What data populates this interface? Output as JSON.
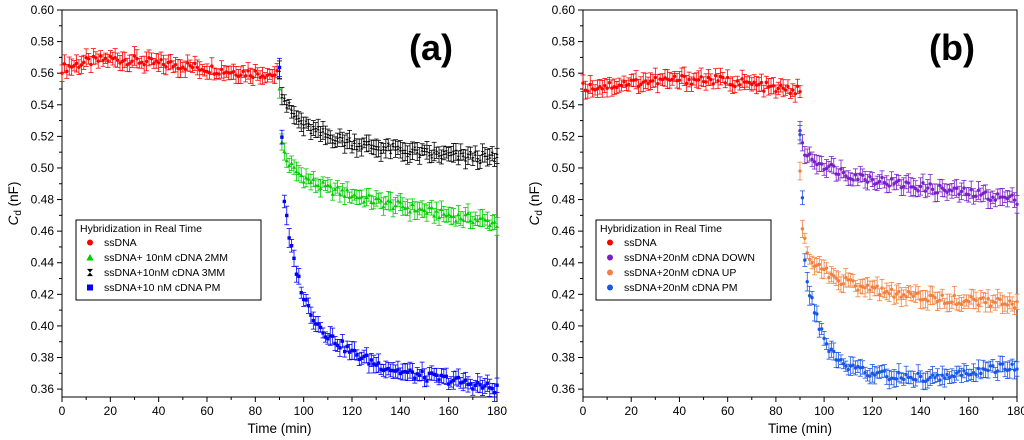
{
  "chart_data": [
    {
      "type": "scatter",
      "panel_label": "(a)",
      "xlabel": "Time (min)",
      "ylabel_main": "C",
      "ylabel_sub": "d",
      "ylabel_unit": " (nF)",
      "xlim": [
        0,
        180
      ],
      "ylim": [
        0.355,
        0.6
      ],
      "xticks": [
        0,
        20,
        40,
        60,
        80,
        100,
        120,
        140,
        160,
        180
      ],
      "yticks": [
        "0.36",
        "0.38",
        "0.40",
        "0.42",
        "0.44",
        "0.46",
        "0.48",
        "0.50",
        "0.52",
        "0.54",
        "0.56",
        "0.58",
        "0.60"
      ],
      "grid": false,
      "error_bars": true,
      "legend_title": "Hybridization in Real Time",
      "legend_position": "lower-left",
      "series": [
        {
          "name": "ssDNA",
          "color": "#ff0000",
          "marker": "circle",
          "x_range": [
            0,
            89
          ],
          "x": [
            0,
            10,
            20,
            30,
            40,
            50,
            60,
            70,
            80,
            89
          ],
          "y": [
            0.563,
            0.567,
            0.569,
            0.568,
            0.566,
            0.565,
            0.563,
            0.561,
            0.56,
            0.559
          ]
        },
        {
          "name": "ssDNA+ 10nM cDNA 2MM",
          "color": "#00cc00",
          "marker": "triangle",
          "x_range": [
            90,
            180
          ],
          "x": [
            90,
            91,
            93,
            96,
            100,
            105,
            110,
            120,
            130,
            140,
            150,
            160,
            170,
            180
          ],
          "y": [
            0.552,
            0.515,
            0.505,
            0.499,
            0.494,
            0.49,
            0.487,
            0.483,
            0.479,
            0.476,
            0.473,
            0.47,
            0.468,
            0.465
          ]
        },
        {
          "name": "ssDNA+10nM cDNA 3MM",
          "color": "#000000",
          "marker": "hourglass",
          "x_range": [
            90,
            180
          ],
          "x": [
            90,
            91,
            93,
            96,
            100,
            105,
            110,
            120,
            130,
            140,
            150,
            160,
            170,
            180
          ],
          "y": [
            0.565,
            0.548,
            0.54,
            0.533,
            0.527,
            0.523,
            0.52,
            0.516,
            0.513,
            0.511,
            0.509,
            0.508,
            0.507,
            0.506
          ]
        },
        {
          "name": "ssDNA+10 nM cDNA PM",
          "color": "#0000ff",
          "marker": "square",
          "x_range": [
            90,
            180
          ],
          "x": [
            90,
            91,
            92,
            94,
            97,
            100,
            105,
            110,
            120,
            130,
            140,
            150,
            160,
            170,
            180
          ],
          "y": [
            0.565,
            0.52,
            0.48,
            0.455,
            0.435,
            0.418,
            0.403,
            0.394,
            0.383,
            0.376,
            0.371,
            0.368,
            0.366,
            0.363,
            0.36
          ]
        }
      ]
    },
    {
      "type": "scatter",
      "panel_label": "(b)",
      "xlabel": "Time (min)",
      "ylabel_main": "C",
      "ylabel_sub": "d",
      "ylabel_unit": " (nF)",
      "xlim": [
        0,
        180
      ],
      "ylim": [
        0.355,
        0.6
      ],
      "xticks": [
        0,
        20,
        40,
        60,
        80,
        100,
        120,
        140,
        160,
        180
      ],
      "yticks": [
        "0.36",
        "0.38",
        "0.40",
        "0.42",
        "0.44",
        "0.46",
        "0.48",
        "0.50",
        "0.52",
        "0.54",
        "0.56",
        "0.58",
        "0.60"
      ],
      "grid": false,
      "error_bars": true,
      "legend_title": "Hybridization in Real Time",
      "legend_position": "lower-left",
      "series": [
        {
          "name": "ssDNA",
          "color": "#ff0000",
          "marker": "circle",
          "x_range": [
            0,
            90
          ],
          "x": [
            0,
            10,
            20,
            30,
            40,
            50,
            60,
            70,
            80,
            90
          ],
          "y": [
            0.551,
            0.552,
            0.554,
            0.555,
            0.556,
            0.556,
            0.555,
            0.553,
            0.55,
            0.549
          ]
        },
        {
          "name": "ssDNA+20nM cDNA DOWN",
          "color": "#7a1fc8",
          "marker": "circle",
          "x_range": [
            90,
            180
          ],
          "x": [
            90,
            91,
            93,
            96,
            100,
            105,
            110,
            120,
            130,
            140,
            150,
            160,
            170,
            180
          ],
          "y": [
            0.525,
            0.513,
            0.508,
            0.505,
            0.502,
            0.499,
            0.496,
            0.493,
            0.49,
            0.488,
            0.486,
            0.484,
            0.482,
            0.48
          ]
        },
        {
          "name": "ssDNA+20nM cDNA UP",
          "color": "#f28040",
          "marker": "circle",
          "x_range": [
            90,
            180
          ],
          "x": [
            90,
            91,
            93,
            96,
            100,
            105,
            110,
            120,
            130,
            140,
            150,
            160,
            170,
            180
          ],
          "y": [
            0.5,
            0.46,
            0.447,
            0.44,
            0.435,
            0.43,
            0.427,
            0.423,
            0.42,
            0.418,
            0.417,
            0.416,
            0.415,
            0.413
          ]
        },
        {
          "name": "ssDNA+20nM cDNA PM",
          "color": "#1a55e6",
          "marker": "circle",
          "x_range": [
            90,
            180
          ],
          "x": [
            90,
            91,
            92,
            94,
            97,
            100,
            103,
            106,
            110,
            120,
            130,
            140,
            150,
            160,
            170,
            180
          ],
          "y": [
            0.52,
            0.48,
            0.44,
            0.42,
            0.405,
            0.392,
            0.384,
            0.378,
            0.374,
            0.37,
            0.368,
            0.367,
            0.368,
            0.37,
            0.373,
            0.373
          ]
        }
      ]
    }
  ]
}
